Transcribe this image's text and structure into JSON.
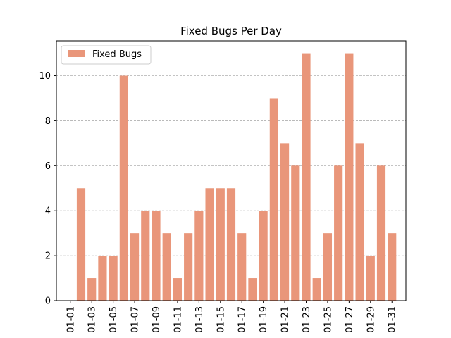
{
  "chart_data": {
    "type": "bar",
    "title": "Fixed Bugs Per Day",
    "xlabel": "",
    "ylabel": "",
    "categories": [
      "01-01",
      "01-02",
      "01-03",
      "01-04",
      "01-05",
      "01-06",
      "01-07",
      "01-08",
      "01-09",
      "01-10",
      "01-11",
      "01-12",
      "01-13",
      "01-14",
      "01-15",
      "01-16",
      "01-17",
      "01-18",
      "01-19",
      "01-20",
      "01-21",
      "01-22",
      "01-23",
      "01-24",
      "01-25",
      "01-26",
      "01-27",
      "01-28",
      "01-29",
      "01-30",
      "01-31"
    ],
    "tick_labels": [
      "01-01",
      "01-03",
      "01-05",
      "01-07",
      "01-09",
      "01-11",
      "01-13",
      "01-15",
      "01-17",
      "01-19",
      "01-21",
      "01-23",
      "01-25",
      "01-27",
      "01-29",
      "01-31"
    ],
    "y_ticks": [
      "0",
      "2",
      "4",
      "6",
      "8",
      "10"
    ],
    "series": [
      {
        "name": "Fixed Bugs",
        "color": "#e9967a",
        "values": [
          0,
          5,
          1,
          2,
          2,
          10,
          3,
          4,
          4,
          3,
          1,
          3,
          4,
          5,
          5,
          5,
          3,
          1,
          4,
          9,
          7,
          6,
          11,
          1,
          3,
          6,
          11,
          7,
          2,
          6,
          3
        ]
      }
    ],
    "ylim": [
      0,
      11.55
    ],
    "grid": "y-dashed",
    "legend_position": "top-left"
  }
}
